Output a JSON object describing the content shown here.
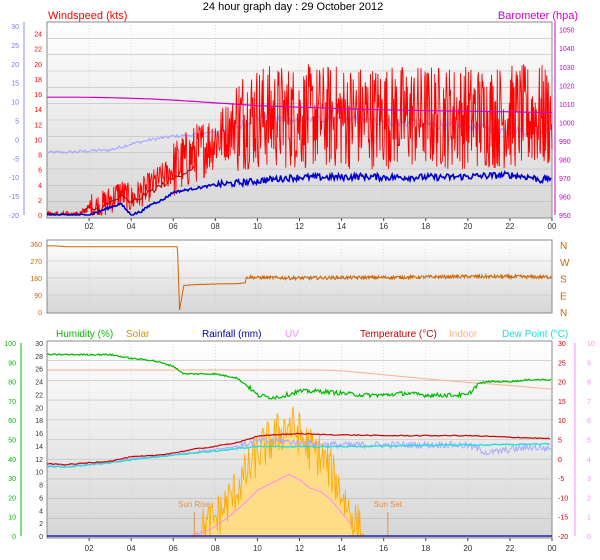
{
  "title": "24 hour graph day : 29 October 2012",
  "colors": {
    "windspeed": "#ff0000",
    "gust_dark": "#bb0000",
    "avg_wind": "#0000cc",
    "blue_light": "#aaaaff",
    "barometer": "#cc00cc",
    "direction": "#cc6600",
    "humidity": "#00bb00",
    "solar": "#ffaa00",
    "solar_fill": "#ffdd88",
    "rainfall": "#0000aa",
    "uv": "#ff88ff",
    "temperature": "#cc0000",
    "indoor": "#ffb088",
    "dewpoint": "#22dddd",
    "sun_marker": "#e0904c",
    "panel_top": "#ffffff",
    "panel_bottom": "#d4d4d4"
  },
  "chart_data": [
    {
      "type": "line",
      "panel": "wind-barometer",
      "series_labels": {
        "windspeed": "Windspeed (kts)",
        "barometer": "Barometer (hpa)"
      },
      "x_ticks": [
        "02",
        "04",
        "06",
        "08",
        "10",
        "12",
        "14",
        "16",
        "18",
        "20",
        "22",
        "00"
      ],
      "y_left_ticks": [
        0,
        2,
        4,
        6,
        8,
        10,
        12,
        14,
        16,
        18,
        20,
        22,
        24
      ],
      "y_left_range": [
        0,
        25
      ],
      "y_outer_ticks": [
        -20,
        -15,
        -10,
        -5,
        0,
        5,
        10,
        15,
        20,
        25,
        30
      ],
      "y_right_ticks": [
        950,
        960,
        970,
        980,
        990,
        1000,
        1010,
        1020,
        1030,
        1040,
        1050
      ],
      "y_right_range": [
        950,
        1052
      ],
      "grid": true,
      "windspeed": {
        "hours": [
          0,
          0.5,
          1,
          1.5,
          2,
          2.5,
          3,
          3.5,
          4,
          4.5,
          5,
          5.5,
          6,
          6.5,
          7,
          7.5,
          8,
          8.5,
          9,
          9.5,
          10,
          11,
          12,
          13,
          14,
          15,
          16,
          17,
          18,
          19,
          20,
          21,
          22,
          23,
          23.5,
          24
        ],
        "values": [
          0,
          0,
          0,
          0,
          1,
          1,
          2,
          3,
          2,
          3,
          4,
          5,
          6,
          7,
          8,
          9,
          10,
          11,
          12,
          13,
          13,
          13,
          13,
          13,
          13,
          13,
          13,
          13,
          13,
          13,
          13,
          13,
          13,
          13,
          13,
          13
        ]
      },
      "avg_wind": {
        "hours": [
          0,
          1,
          2,
          3,
          3.5,
          4,
          4.5,
          5,
          5.5,
          6,
          7,
          8,
          9,
          10,
          11,
          12,
          13,
          14,
          15,
          16,
          17,
          18,
          19,
          20,
          21,
          22,
          23,
          23.5,
          24
        ],
        "values": [
          0,
          0,
          0,
          1,
          1.5,
          0,
          0.5,
          1.5,
          2,
          3,
          3.5,
          4,
          4.2,
          4.5,
          4.8,
          5,
          5,
          5,
          5.1,
          5,
          5,
          5,
          5,
          5.1,
          5.2,
          5.3,
          5,
          4.6,
          5
        ]
      },
      "temp_trace": {
        "hours": [
          0,
          1,
          2,
          3,
          4,
          5,
          6,
          7,
          8,
          9,
          10,
          11,
          12,
          13,
          14,
          15,
          16,
          17,
          18,
          19,
          20,
          21,
          22,
          23,
          24
        ],
        "values": [
          8.3,
          8.3,
          8.5,
          8.6,
          9.4,
          10,
          10.4,
          10.6,
          11,
          11.6,
          13,
          12.7,
          12.5,
          12.5,
          12.6,
          12.5,
          12.4,
          12.2,
          12,
          11.8,
          11.7,
          11.4,
          11.2,
          11.1,
          11
        ]
      },
      "barometer": {
        "hours": [
          0,
          1,
          2,
          3,
          4,
          5,
          6,
          7,
          8,
          9,
          10,
          12,
          14,
          16,
          18,
          20,
          22,
          24
        ],
        "values": [
          1013.6,
          1013.6,
          1013.5,
          1013.3,
          1013,
          1012.6,
          1012,
          1011.3,
          1010.5,
          1009.8,
          1009,
          1008.2,
          1007.4,
          1006.8,
          1006.3,
          1006,
          1005.7,
          1005.3
        ]
      }
    },
    {
      "type": "line",
      "panel": "wind-direction",
      "series_labels": {
        "direction": ""
      },
      "x_ticks": [],
      "y_ticks": [
        0,
        90,
        180,
        270,
        360
      ],
      "y_range": [
        0,
        360
      ],
      "compass_labels": [
        "N",
        "W",
        "S",
        "E",
        "N"
      ],
      "grid": true,
      "direction": {
        "hours": [
          0,
          0.4,
          1,
          2,
          3,
          4,
          5,
          6.2,
          6.3,
          6.5,
          7,
          8,
          9,
          9.4,
          9.5,
          10,
          12,
          14,
          16,
          18,
          20,
          22,
          24
        ],
        "values": [
          350,
          350,
          345,
          345,
          345,
          345,
          345,
          345,
          10,
          140,
          145,
          148,
          150,
          155,
          185,
          182,
          180,
          182,
          183,
          185,
          188,
          187,
          185
        ]
      }
    },
    {
      "type": "line",
      "panel": "humidity-temperature",
      "series_labels": {
        "humidity": "Humidity (%)",
        "solar": "Solar",
        "rainfall": "Rainfall (mm)",
        "uv": "UV",
        "temperature": "Temperature (°C)",
        "indoor": "Indoor",
        "dewpoint": "Dew Point (°C)"
      },
      "x_ticks": [
        "02",
        "04",
        "06",
        "08",
        "10",
        "12",
        "14",
        "16",
        "18",
        "20",
        "22",
        "00"
      ],
      "y_humidity_ticks": [
        0,
        10,
        20,
        30,
        40,
        50,
        60,
        70,
        80,
        90,
        100
      ],
      "y_rain_ticks": [
        0,
        2,
        4,
        6,
        8,
        10,
        12,
        14,
        16,
        18,
        20,
        22,
        24,
        26,
        28,
        30
      ],
      "y_temp_ticks": [
        -20,
        -15,
        -10,
        -5,
        0,
        5,
        10,
        15,
        20,
        25,
        30
      ],
      "y_uv_ticks": [
        0,
        1,
        2,
        3,
        4,
        5,
        6,
        7,
        8,
        9,
        10
      ],
      "grid": true,
      "annotations": [
        "Sun Rise",
        "Sun Set"
      ],
      "sunrise_hour": 7,
      "sunset_hour": 16.2,
      "humidity": {
        "hours": [
          0,
          1,
          2,
          3,
          4,
          5,
          6,
          6.5,
          7,
          8,
          9,
          9.5,
          10,
          10.5,
          11,
          12,
          13,
          14,
          15,
          16,
          17,
          18,
          19,
          20,
          20.5,
          21,
          22,
          23,
          24
        ],
        "values": [
          94,
          94,
          94,
          94,
          92,
          91,
          88,
          84,
          84,
          84,
          82,
          78,
          73,
          72,
          72,
          75,
          75,
          74,
          73,
          73,
          74,
          73,
          73,
          73,
          79,
          80,
          80,
          81,
          81
        ]
      },
      "temperature": {
        "hours": [
          0,
          1,
          2,
          3,
          4,
          5,
          6,
          7,
          8,
          9,
          10,
          11,
          12,
          13,
          14,
          15,
          16,
          17,
          18,
          19,
          20,
          21,
          22,
          23,
          24
        ],
        "values": [
          -1.3,
          -1.5,
          -1,
          -0.6,
          0.5,
          0.8,
          1.5,
          2.5,
          3.2,
          4.2,
          5.8,
          6.3,
          6.5,
          6.3,
          6.2,
          6.1,
          6,
          6,
          6,
          6,
          6,
          5.8,
          5.6,
          5.4,
          5.2
        ]
      },
      "light_temp": {
        "hours": [
          0,
          1,
          2,
          3,
          4,
          5,
          6,
          7,
          8,
          9,
          10,
          11,
          12,
          13,
          14,
          15,
          16,
          17,
          18,
          19,
          20,
          21,
          22,
          23,
          24
        ],
        "values": [
          -1.8,
          -1.8,
          -1.4,
          -1,
          0,
          0.5,
          1,
          1.7,
          2.5,
          3.2,
          4.5,
          4.6,
          4.2,
          3.8,
          3.6,
          3.6,
          3.6,
          3.6,
          3.6,
          3.7,
          3.4,
          1.5,
          2.4,
          3,
          2.6
        ]
      },
      "dewpoint": {
        "hours": [
          0,
          1,
          2,
          3,
          4,
          5,
          6,
          7,
          8,
          9,
          10,
          11,
          12,
          13,
          14,
          15,
          16,
          17,
          18,
          19,
          20,
          21,
          22,
          23,
          24
        ],
        "values": [
          -2,
          -2.1,
          -1.5,
          -1,
          -0.3,
          0.3,
          1,
          1.5,
          2,
          2.6,
          3.2,
          3.2,
          3.1,
          3.1,
          3.2,
          3.2,
          3.3,
          3.4,
          3.5,
          3.6,
          3.6,
          3.6,
          3.7,
          3.8,
          3.8
        ]
      },
      "indoor": {
        "hours": [
          0,
          4,
          8,
          10,
          13,
          14,
          16,
          18,
          20,
          22,
          24
        ],
        "values": [
          23,
          23,
          23,
          23,
          23,
          22.8,
          21.8,
          20.7,
          19.8,
          19,
          18
        ]
      },
      "solar_uv": {
        "hours": [
          0,
          6.9,
          7,
          7.5,
          8,
          8.5,
          9,
          9.5,
          10,
          11,
          11.5,
          12,
          12.5,
          13,
          13.5,
          14,
          14.5,
          15,
          15.1,
          24
        ],
        "values": [
          0,
          0,
          0.1,
          0.4,
          0.9,
          1.6,
          2.4,
          3.3,
          4.3,
          5.3,
          5.8,
          5.3,
          4.5,
          4.2,
          3.4,
          2.2,
          1,
          0.1,
          0,
          0
        ]
      },
      "rainfall": {
        "hours": [
          0,
          24
        ],
        "values": [
          0,
          0
        ]
      }
    }
  ]
}
